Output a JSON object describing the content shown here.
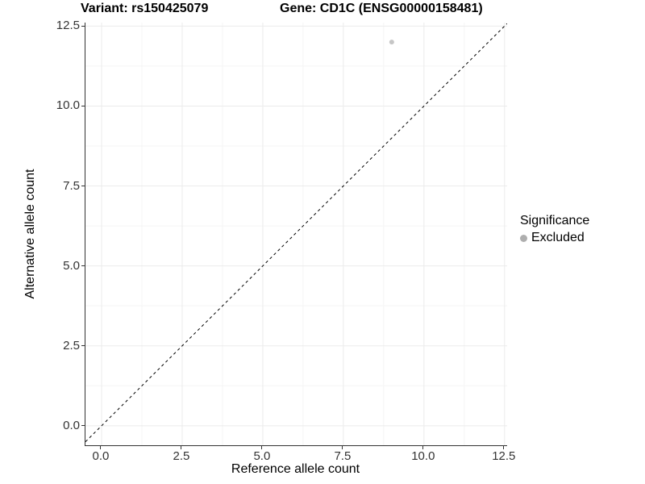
{
  "chart_data": {
    "type": "scatter",
    "titles": {
      "left": "Variant: rs150425079",
      "right": "Gene: CD1C (ENSG00000158481)"
    },
    "xlabel": "Reference allele count",
    "ylabel": "Alternative allele count",
    "xlim": [
      -0.5,
      12.58
    ],
    "ylim": [
      -0.61,
      12.61
    ],
    "xticks": [
      0.0,
      2.5,
      5.0,
      7.5,
      10.0,
      12.5
    ],
    "yticks": [
      0.0,
      2.5,
      5.0,
      7.5,
      10.0,
      12.5
    ],
    "xticks_minor": [
      1.25,
      3.75,
      6.25,
      8.75,
      11.25
    ],
    "yticks_minor": [
      1.25,
      3.75,
      6.25,
      8.75,
      11.25
    ],
    "tick_decimals": 1,
    "grid": true,
    "identity_line": {
      "slope": 1,
      "intercept": 0,
      "dash": "3.5 3.5",
      "color": "#000000",
      "width": 1
    },
    "series": [
      {
        "name": "Excluded",
        "color": "#c6c6c6",
        "point_radius": 3,
        "points": [
          [
            9,
            12
          ]
        ]
      }
    ],
    "legend": {
      "position": "right",
      "title": "Significance",
      "entries": [
        {
          "label": "Excluded",
          "color": "#aeaeae",
          "marker": "circle"
        }
      ]
    },
    "colors": {
      "axis_line": "#333333",
      "tick_mark": "#333333",
      "tick_label": "#333333",
      "grid_major": "#ebebeb",
      "grid_minor": "#f5f5f5",
      "background": "#ffffff"
    }
  }
}
